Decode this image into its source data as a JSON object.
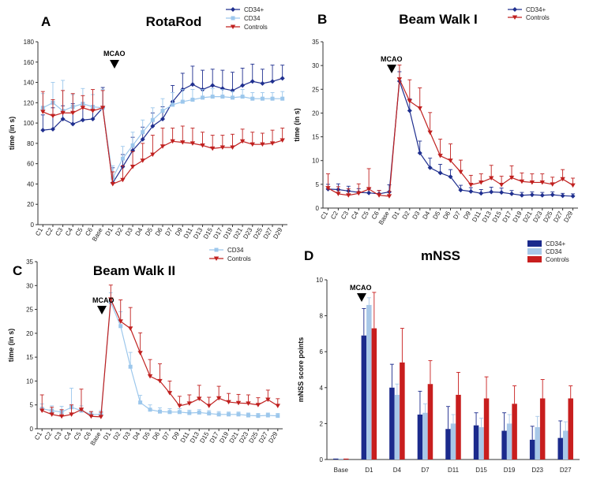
{
  "chart_data": [
    {
      "panel": "A",
      "title": "RotaRod",
      "type": "line",
      "ylabel": "time (in s)",
      "ylim": [
        0,
        180
      ],
      "yticks": [
        0,
        20,
        40,
        60,
        80,
        100,
        120,
        140,
        160,
        180
      ],
      "grid": false,
      "legend_position": "top-right",
      "annotation": "MCAO",
      "annotation_at": "D1",
      "categories": [
        "C1",
        "C2",
        "C3",
        "C4",
        "C5",
        "C6",
        "Base",
        "D1",
        "D2",
        "D3",
        "D4",
        "D5",
        "D6",
        "D7",
        "D9",
        "D11",
        "D13",
        "D15",
        "D17",
        "D19",
        "D21",
        "D23",
        "D25",
        "D27",
        "D29"
      ],
      "series": [
        {
          "name": "CD34+",
          "color": "#1f2f8f",
          "marker": "diamond",
          "values": [
            93,
            94,
            104,
            99,
            103,
            104,
            115,
            41,
            57,
            73,
            84,
            97,
            104,
            121,
            133,
            138,
            133,
            137,
            134,
            132,
            137,
            141,
            139,
            141,
            144
          ],
          "err": [
            15,
            21,
            13,
            20,
            15,
            11,
            20,
            15,
            12,
            13,
            12,
            13,
            12,
            16,
            16,
            18,
            19,
            16,
            18,
            18,
            17,
            17,
            14,
            16,
            13
          ]
        },
        {
          "name": "CD34",
          "color": "#9cc7ec",
          "marker": "square",
          "values": [
            115,
            120,
            112,
            116,
            119,
            116,
            115,
            46,
            65,
            78,
            91,
            103,
            112,
            118,
            121,
            123,
            125,
            126,
            126,
            125,
            126,
            124,
            124,
            124,
            124
          ],
          "err": [
            14,
            20,
            30,
            12,
            15,
            12,
            18,
            12,
            12,
            13,
            12,
            12,
            12,
            12,
            12,
            10,
            8,
            8,
            7,
            6,
            7,
            6,
            6,
            6,
            7
          ]
        },
        {
          "name": "Controls",
          "color": "#c0201f",
          "marker": "triangle-down",
          "values": [
            111,
            107,
            110,
            110,
            115,
            112,
            115,
            40,
            44,
            57,
            63,
            69,
            77,
            82,
            81,
            80,
            78,
            75,
            76,
            76,
            82,
            79,
            79,
            80,
            83
          ],
          "err": [
            20,
            16,
            22,
            19,
            12,
            21,
            17,
            12,
            14,
            15,
            17,
            19,
            18,
            13,
            16,
            15,
            13,
            13,
            12,
            13,
            12,
            12,
            11,
            13,
            12
          ]
        }
      ]
    },
    {
      "panel": "B",
      "title": "Beam Walk I",
      "type": "line",
      "ylabel": "time (in s)",
      "ylim": [
        0,
        35
      ],
      "yticks": [
        0,
        5,
        10,
        15,
        20,
        25,
        30,
        35
      ],
      "grid": false,
      "legend_position": "top-right",
      "annotation": "MCAO",
      "annotation_at": "D1",
      "categories": [
        "C1",
        "C2",
        "C3",
        "C4",
        "C5",
        "C6",
        "Base",
        "D1",
        "D2",
        "D3",
        "D4",
        "D5",
        "D6",
        "D7",
        "D9",
        "D11",
        "D13",
        "D15",
        "D17",
        "D19",
        "D21",
        "D23",
        "D25",
        "D27",
        "D29"
      ],
      "series": [
        {
          "name": "CD34+",
          "color": "#1f2f8f",
          "marker": "diamond",
          "values": [
            4.0,
            3.9,
            3.6,
            3.3,
            3.2,
            3.0,
            3.4,
            26.7,
            20.5,
            11.6,
            8.5,
            7.4,
            6.6,
            3.8,
            3.5,
            3.1,
            3.4,
            3.3,
            3.0,
            2.7,
            2.8,
            2.7,
            2.8,
            2.6,
            2.5
          ],
          "err": [
            1.0,
            1.2,
            1.0,
            0.8,
            0.9,
            0.7,
            1.5,
            2.0,
            2.5,
            2.5,
            2.0,
            1.8,
            1.5,
            1.0,
            0.8,
            0.8,
            1.0,
            0.9,
            0.7,
            0.6,
            0.6,
            0.6,
            0.6,
            0.5,
            0.5
          ]
        },
        {
          "name": "Controls",
          "color": "#c0201f",
          "marker": "triangle-down",
          "values": [
            4.2,
            3.0,
            2.7,
            3.1,
            4.0,
            2.7,
            2.5,
            27.1,
            22.5,
            21.0,
            15.9,
            11.0,
            10.0,
            7.6,
            4.9,
            5.4,
            6.3,
            4.9,
            6.4,
            5.6,
            5.4,
            5.4,
            5.0,
            6.1,
            4.8
          ],
          "err": [
            3.0,
            1.5,
            1.4,
            2.0,
            4.3,
            1.0,
            1.0,
            3.0,
            4.5,
            4.3,
            4.2,
            3.5,
            3.5,
            2.5,
            2.0,
            1.8,
            2.7,
            1.8,
            2.5,
            1.8,
            1.8,
            1.8,
            1.5,
            2.0,
            1.5
          ]
        }
      ]
    },
    {
      "panel": "C",
      "title": "Beam Walk II",
      "type": "line",
      "ylabel": "time (in s)",
      "ylim": [
        0,
        35
      ],
      "yticks": [
        0,
        5,
        10,
        15,
        20,
        25,
        30,
        35
      ],
      "grid": false,
      "legend_position": "top-right",
      "annotation": "MCAO",
      "annotation_at": "D1",
      "categories": [
        "C1",
        "C2",
        "C3",
        "C4",
        "C5",
        "C6",
        "Base",
        "D1",
        "D2",
        "D3",
        "D4",
        "D5",
        "D6",
        "D7",
        "D9",
        "D11",
        "D13",
        "D15",
        "D17",
        "D19",
        "D21",
        "D23",
        "D25",
        "D27",
        "D29"
      ],
      "series": [
        {
          "name": "CD34",
          "color": "#9cc7ec",
          "marker": "square",
          "values": [
            4.2,
            3.8,
            3.5,
            4.5,
            3.8,
            3.0,
            3.0,
            26.5,
            21.5,
            13.0,
            5.5,
            4.0,
            3.6,
            3.5,
            3.5,
            3.3,
            3.4,
            3.2,
            3.0,
            3.0,
            3.0,
            2.8,
            2.7,
            2.8,
            2.7
          ],
          "err": [
            1.0,
            1.0,
            1.2,
            4.0,
            1.0,
            0.6,
            0.8,
            2.0,
            3.0,
            3.0,
            1.5,
            1.0,
            0.8,
            0.7,
            0.7,
            0.6,
            0.6,
            0.6,
            0.6,
            0.5,
            0.5,
            0.5,
            0.5,
            0.5,
            0.5
          ]
        },
        {
          "name": "Controls",
          "color": "#c0201f",
          "marker": "triangle-down",
          "values": [
            3.8,
            3.0,
            2.6,
            3.0,
            4.0,
            2.6,
            2.5,
            27.1,
            22.5,
            21.0,
            15.9,
            11.0,
            10.0,
            7.5,
            4.8,
            5.3,
            6.3,
            4.8,
            6.4,
            5.6,
            5.4,
            5.3,
            5.0,
            6.1,
            4.8
          ],
          "err": [
            3.3,
            1.5,
            1.4,
            2.0,
            4.3,
            1.0,
            1.0,
            3.0,
            4.5,
            4.4,
            4.2,
            3.5,
            3.6,
            2.5,
            2.0,
            1.8,
            2.8,
            1.8,
            2.5,
            1.8,
            1.8,
            1.8,
            1.5,
            2.0,
            1.5
          ]
        }
      ]
    },
    {
      "panel": "D",
      "title": "mNSS",
      "type": "bar",
      "ylabel": "mNSS score points",
      "ylim": [
        0,
        10
      ],
      "yticks": [
        0,
        2,
        4,
        6,
        8,
        10
      ],
      "grid": false,
      "legend_position": "top-right",
      "annotation": "MCAO",
      "annotation_at": "D1",
      "categories": [
        "Base",
        "D1",
        "D4",
        "D7",
        "D11",
        "D15",
        "D19",
        "D23",
        "D27"
      ],
      "series": [
        {
          "name": "CD34+",
          "color": "#1b2a8c",
          "values": [
            0.05,
            6.9,
            4.0,
            2.5,
            1.7,
            1.9,
            1.6,
            1.1,
            1.2
          ],
          "err": [
            0,
            1.5,
            1.3,
            1.3,
            1.25,
            0.7,
            1.0,
            0.75,
            0.95
          ]
        },
        {
          "name": "CD34",
          "color": "#a8c8e8",
          "values": [
            0.05,
            8.6,
            3.6,
            2.6,
            2.0,
            1.8,
            2.0,
            1.8,
            1.6
          ],
          "err": [
            0,
            0.4,
            0.6,
            0.5,
            0.5,
            0.5,
            0.5,
            0.6,
            0.5
          ]
        },
        {
          "name": "Controls",
          "color": "#c81e1e",
          "values": [
            0.05,
            7.3,
            5.4,
            4.2,
            3.6,
            3.4,
            3.1,
            3.4,
            3.4
          ],
          "err": [
            0,
            2.0,
            1.9,
            1.3,
            1.25,
            1.2,
            1.0,
            1.05,
            0.7
          ]
        }
      ]
    }
  ]
}
